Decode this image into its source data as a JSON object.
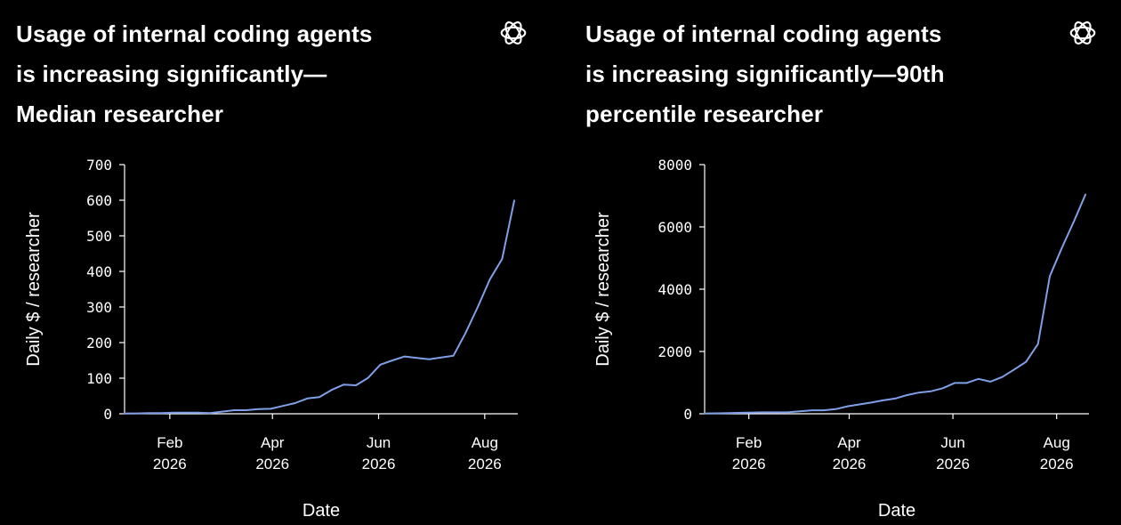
{
  "panels": [
    {
      "title_lines": [
        "Usage of internal coding agents",
        "is increasing significantly—",
        "Median researcher"
      ],
      "logo_icon": "openai-logo-icon"
    },
    {
      "title_lines": [
        "Usage of internal coding agents",
        "is increasing significantly—90th",
        "percentile researcher"
      ],
      "logo_icon": "openai-logo-icon"
    }
  ],
  "colors": {
    "background": "#000000",
    "text": "#ffffff",
    "line": "#7f9fe6"
  },
  "chart_data": [
    {
      "type": "line",
      "title": "Usage of internal coding agents is increasing significantly—Median researcher",
      "xlabel": "Date",
      "ylabel": "Daily $ / researcher",
      "ylim": [
        0,
        700
      ],
      "xlim": [
        "2026-01-06",
        "2026-08-20"
      ],
      "yticks": [
        0,
        100,
        200,
        300,
        400,
        500,
        600,
        700
      ],
      "xticks": [
        {
          "date": "2026-02-01",
          "label1": "Feb",
          "label2": "2026"
        },
        {
          "date": "2026-04-01",
          "label1": "Apr",
          "label2": "2026"
        },
        {
          "date": "2026-06-01",
          "label1": "Jun",
          "label2": "2026"
        },
        {
          "date": "2026-08-01",
          "label1": "Aug",
          "label2": "2026"
        }
      ],
      "grid": false,
      "series": [
        {
          "x": [
            "2026-01-06",
            "2026-01-13",
            "2026-01-20",
            "2026-01-27",
            "2026-02-03",
            "2026-02-10",
            "2026-02-17",
            "2026-02-24",
            "2026-03-03",
            "2026-03-10",
            "2026-03-17",
            "2026-03-24",
            "2026-03-31",
            "2026-04-07",
            "2026-04-14",
            "2026-04-21",
            "2026-04-28",
            "2026-05-05",
            "2026-05-12",
            "2026-05-19",
            "2026-05-26",
            "2026-06-02",
            "2026-06-09",
            "2026-06-16",
            "2026-06-23",
            "2026-06-30",
            "2026-07-07",
            "2026-07-14",
            "2026-07-21",
            "2026-07-28",
            "2026-08-04",
            "2026-08-11",
            "2026-08-18"
          ],
          "y": [
            1,
            1,
            2,
            2,
            3,
            3,
            3,
            2,
            6,
            10,
            10,
            13,
            14,
            22,
            30,
            43,
            47,
            67,
            82,
            80,
            101,
            138,
            150,
            161,
            157,
            153,
            158,
            163,
            227,
            300,
            378,
            435,
            600
          ]
        }
      ]
    },
    {
      "type": "line",
      "title": "Usage of internal coding agents is increasing significantly—90th percentile researcher",
      "xlabel": "Date",
      "ylabel": "Daily $ / researcher",
      "ylim": [
        0,
        8000
      ],
      "xlim": [
        "2026-01-06",
        "2026-08-20"
      ],
      "yticks": [
        0,
        2000,
        4000,
        6000,
        8000
      ],
      "xticks": [
        {
          "date": "2026-02-01",
          "label1": "Feb",
          "label2": "2026"
        },
        {
          "date": "2026-04-01",
          "label1": "Apr",
          "label2": "2026"
        },
        {
          "date": "2026-06-01",
          "label1": "Jun",
          "label2": "2026"
        },
        {
          "date": "2026-08-01",
          "label1": "Aug",
          "label2": "2026"
        }
      ],
      "grid": false,
      "series": [
        {
          "x": [
            "2026-01-06",
            "2026-01-13",
            "2026-01-20",
            "2026-01-27",
            "2026-02-03",
            "2026-02-10",
            "2026-02-17",
            "2026-02-24",
            "2026-03-03",
            "2026-03-10",
            "2026-03-17",
            "2026-03-24",
            "2026-03-31",
            "2026-04-07",
            "2026-04-14",
            "2026-04-21",
            "2026-04-28",
            "2026-05-05",
            "2026-05-12",
            "2026-05-19",
            "2026-05-26",
            "2026-06-02",
            "2026-06-09",
            "2026-06-16",
            "2026-06-23",
            "2026-06-30",
            "2026-07-07",
            "2026-07-14",
            "2026-07-21",
            "2026-07-28",
            "2026-08-04",
            "2026-08-11",
            "2026-08-18"
          ],
          "y": [
            10,
            15,
            20,
            30,
            40,
            45,
            45,
            50,
            80,
            110,
            110,
            150,
            240,
            300,
            360,
            430,
            490,
            600,
            680,
            720,
            820,
            990,
            990,
            1120,
            1030,
            1180,
            1420,
            1670,
            2240,
            4420,
            5320,
            6160,
            7050
          ]
        }
      ]
    }
  ]
}
